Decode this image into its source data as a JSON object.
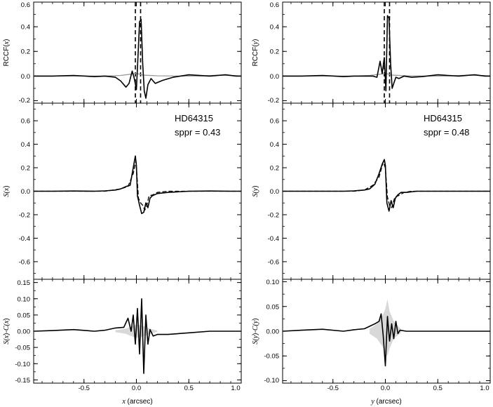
{
  "chart_data": [
    {
      "id": "left",
      "type": "line",
      "title": "",
      "xlabel_var": "x",
      "xlabel_unit": " (arcsec)",
      "xlim": [
        -0.98,
        1.0
      ],
      "xticks": [
        -0.5,
        0.0,
        0.5,
        1.0
      ],
      "xtick_labels": [
        "-0.5",
        "0.0",
        "0.5",
        "1.0"
      ],
      "panels": [
        {
          "id": "rccf",
          "ylabel": [
            {
              "t": "RCCF(",
              "i": false
            },
            {
              "t": "x",
              "i": true
            },
            {
              "t": ")",
              "i": false
            }
          ],
          "ylim": [
            -0.22,
            0.6
          ],
          "yticks": [
            -0.2,
            0.0,
            0.2,
            0.4,
            0.6
          ],
          "ytick_labels": [
            "-0.2",
            "0.0",
            "0.2",
            "0.4",
            "0.6"
          ],
          "vlines_dashed": [
            -0.01,
            0.04
          ],
          "series": [
            {
              "name": "",
              "style": "gray",
              "x": [
                -0.98,
                -0.6,
                -0.3,
                -0.15,
                -0.05,
                0.0,
                0.03,
                0.06,
                0.1,
                0.2,
                0.4,
                0.6,
                0.8,
                0.95,
                1.0
              ],
              "y": [
                0.0,
                0.0,
                0.0,
                0.005,
                0.015,
                0.022,
                0.015,
                0.008,
                0.006,
                0.002,
                0.0,
                0.0,
                0.008,
                0.003,
                0.0
              ]
            },
            {
              "name": "",
              "style": "black",
              "x": [
                -0.98,
                -0.8,
                -0.6,
                -0.4,
                -0.3,
                -0.2,
                -0.15,
                -0.1,
                -0.07,
                -0.04,
                -0.02,
                0.0,
                0.015,
                0.03,
                0.045,
                0.06,
                0.075,
                0.09,
                0.11,
                0.14,
                0.18,
                0.25,
                0.35,
                0.5,
                0.7,
                0.85,
                0.95,
                1.0
              ],
              "y": [
                0.0,
                0.0,
                0.005,
                -0.005,
                0.0,
                -0.01,
                -0.04,
                -0.09,
                -0.06,
                0.04,
                -0.02,
                -0.11,
                0.15,
                0.44,
                0.46,
                0.1,
                -0.12,
                -0.18,
                -0.07,
                -0.02,
                -0.06,
                -0.035,
                -0.01,
                0.01,
                0.0,
                0.01,
                0.0,
                0.0
              ]
            }
          ]
        },
        {
          "id": "signal",
          "ylabel": [
            {
              "t": "S(",
              "i": true
            },
            {
              "t": "x",
              "i": true
            },
            {
              "t": ")",
              "i": false
            }
          ],
          "ylim": [
            -0.75,
            0.75
          ],
          "yticks": [
            -0.6,
            -0.4,
            -0.2,
            0.0,
            0.2,
            0.4,
            0.6
          ],
          "ytick_labels": [
            "-0.6",
            "-0.4",
            "-0.2",
            "0.0",
            "0.2",
            "0.4",
            "0.6"
          ],
          "annotation": [
            "HD64315",
            "sppr = 0.43"
          ],
          "series": [
            {
              "name": "",
              "style": "dashed",
              "x": [
                -0.98,
                -0.6,
                -0.3,
                -0.15,
                -0.08,
                -0.03,
                -0.005,
                0.0,
                0.02,
                0.04,
                0.06,
                0.08,
                0.1,
                0.12,
                0.16,
                0.2,
                0.3,
                0.5,
                0.8,
                1.0
              ],
              "y": [
                0.0,
                0.0,
                0.0,
                0.02,
                0.04,
                0.15,
                0.26,
                0.2,
                -0.06,
                -0.1,
                -0.12,
                -0.16,
                -0.12,
                -0.04,
                -0.03,
                -0.01,
                0.0,
                0.0,
                0.0,
                0.0
              ]
            },
            {
              "name": "",
              "style": "black",
              "x": [
                -0.98,
                -0.8,
                -0.6,
                -0.4,
                -0.3,
                -0.2,
                -0.15,
                -0.1,
                -0.06,
                -0.03,
                -0.01,
                0.0,
                0.01,
                0.03,
                0.05,
                0.07,
                0.09,
                0.11,
                0.13,
                0.15,
                0.2,
                0.3,
                0.5,
                0.7,
                0.9,
                1.0
              ],
              "y": [
                0.0,
                0.0,
                0.002,
                0.0,
                0.003,
                0.01,
                0.02,
                0.04,
                0.05,
                0.2,
                0.3,
                0.22,
                -0.04,
                -0.12,
                -0.19,
                -0.18,
                -0.1,
                -0.14,
                -0.06,
                -0.04,
                -0.02,
                -0.01,
                0.0,
                0.002,
                0.0,
                0.0
              ]
            }
          ]
        },
        {
          "id": "diff",
          "ylabel": [
            {
              "t": "S(",
              "i": true
            },
            {
              "t": "x",
              "i": true
            },
            {
              "t": ")-",
              "i": false
            },
            {
              "t": "C(",
              "i": true
            },
            {
              "t": "x",
              "i": true
            },
            {
              "t": ")",
              "i": false
            }
          ],
          "ylim": [
            -0.16,
            0.16
          ],
          "yticks": [
            -0.15,
            -0.1,
            -0.05,
            0.0,
            0.05,
            0.1,
            0.15
          ],
          "ytick_labels": [
            "-0.15",
            "-0.10",
            "-0.05",
            "0.00",
            "0.05",
            "0.10",
            "0.15"
          ],
          "band": {
            "x": [
              -0.2,
              -0.1,
              -0.05,
              0.0,
              0.05,
              0.1,
              0.15,
              0.2
            ],
            "lo": [
              -0.003,
              -0.008,
              -0.015,
              -0.02,
              -0.018,
              -0.012,
              -0.006,
              -0.002
            ],
            "hi": [
              0.003,
              0.008,
              0.015,
              0.02,
              0.018,
              0.012,
              0.006,
              0.002
            ]
          },
          "series": [
            {
              "name": "",
              "style": "black",
              "x": [
                -0.98,
                -0.8,
                -0.6,
                -0.4,
                -0.3,
                -0.2,
                -0.12,
                -0.08,
                -0.05,
                -0.03,
                -0.01,
                0.01,
                0.03,
                0.05,
                0.07,
                0.09,
                0.11,
                0.13,
                0.16,
                0.2,
                0.3,
                0.5,
                0.7,
                0.9,
                1.0
              ],
              "y": [
                0.0,
                0.002,
                0.005,
                0.0,
                0.003,
                0.01,
                0.012,
                0.04,
                0.0,
                0.05,
                -0.04,
                0.07,
                -0.07,
                0.1,
                -0.13,
                0.05,
                -0.04,
                0.005,
                -0.015,
                -0.01,
                -0.01,
                -0.005,
                0.0,
                0.0,
                0.0
              ]
            }
          ]
        }
      ]
    },
    {
      "id": "right",
      "type": "line",
      "title": "",
      "xlabel_var": "y",
      "xlabel_unit": " (arcsec)",
      "xlim": [
        -0.98,
        1.0
      ],
      "xticks": [
        -0.5,
        0.0,
        0.5,
        1.0
      ],
      "xtick_labels": [
        "-0.5",
        "0.0",
        "0.5",
        "1.0"
      ],
      "panels": [
        {
          "id": "rccf",
          "ylabel": [
            {
              "t": "RCCF(",
              "i": false
            },
            {
              "t": "y",
              "i": true
            },
            {
              "t": ")",
              "i": false
            }
          ],
          "ylim": [
            -0.22,
            0.6
          ],
          "yticks": [
            -0.2,
            0.0,
            0.2,
            0.4,
            0.6
          ],
          "ytick_labels": [
            "-0.2",
            "0.0",
            "0.2",
            "0.4",
            "0.6"
          ],
          "vlines_dashed": [
            -0.01,
            0.04
          ],
          "series": [
            {
              "name": "",
              "style": "gray",
              "x": [
                -0.98,
                -0.6,
                -0.3,
                -0.15,
                -0.05,
                0.0,
                0.03,
                0.06,
                0.1,
                0.2,
                0.4,
                0.6,
                0.8,
                0.95,
                1.0
              ],
              "y": [
                0.0,
                0.0,
                0.0,
                0.005,
                0.015,
                0.022,
                0.015,
                0.008,
                0.006,
                0.002,
                0.0,
                0.0,
                0.008,
                0.003,
                0.0
              ]
            },
            {
              "name": "",
              "style": "black",
              "x": [
                -0.98,
                -0.8,
                -0.6,
                -0.4,
                -0.3,
                -0.2,
                -0.12,
                -0.08,
                -0.05,
                -0.03,
                -0.01,
                0.005,
                0.02,
                0.035,
                0.05,
                0.065,
                0.08,
                0.1,
                0.13,
                0.18,
                0.25,
                0.35,
                0.5,
                0.7,
                0.85,
                0.95,
                1.0
              ],
              "y": [
                0.0,
                0.0,
                0.005,
                -0.005,
                0.0,
                0.0,
                0.0,
                -0.01,
                0.12,
                0.02,
                0.15,
                -0.12,
                0.49,
                0.47,
                0.1,
                -0.1,
                -0.06,
                -0.01,
                -0.02,
                0.0,
                -0.01,
                -0.005,
                0.01,
                0.0,
                0.01,
                0.0,
                0.0
              ]
            }
          ]
        },
        {
          "id": "signal",
          "ylabel": [
            {
              "t": "S(",
              "i": true
            },
            {
              "t": "y",
              "i": true
            },
            {
              "t": ")",
              "i": false
            }
          ],
          "ylim": [
            -0.75,
            0.75
          ],
          "yticks": [
            -0.6,
            -0.4,
            -0.2,
            0.0,
            0.2,
            0.4,
            0.6
          ],
          "ytick_labels": [
            "-0.6",
            "-0.4",
            "-0.2",
            "0.0",
            "0.2",
            "0.4",
            "0.6"
          ],
          "annotation": [
            "HD64315",
            "sppr = 0.48"
          ],
          "series": [
            {
              "name": "",
              "style": "dashed",
              "x": [
                -0.98,
                -0.6,
                -0.3,
                -0.2,
                -0.12,
                -0.06,
                -0.02,
                0.0,
                0.02,
                0.04,
                0.06,
                0.09,
                0.12,
                0.18,
                0.25,
                0.4,
                0.7,
                1.0
              ],
              "y": [
                0.0,
                0.0,
                0.0,
                0.01,
                0.05,
                0.12,
                0.25,
                0.2,
                -0.05,
                -0.12,
                -0.14,
                -0.05,
                -0.04,
                -0.01,
                0.0,
                0.0,
                0.0,
                0.0
              ]
            },
            {
              "name": "",
              "style": "black",
              "x": [
                -0.98,
                -0.8,
                -0.6,
                -0.4,
                -0.3,
                -0.2,
                -0.15,
                -0.1,
                -0.06,
                -0.03,
                -0.01,
                0.0,
                0.015,
                0.035,
                0.055,
                0.075,
                0.095,
                0.12,
                0.15,
                0.2,
                0.3,
                0.5,
                0.7,
                0.9,
                1.0
              ],
              "y": [
                0.0,
                0.0,
                0.0,
                0.0,
                0.003,
                0.01,
                0.02,
                0.06,
                0.15,
                0.23,
                0.27,
                0.22,
                -0.1,
                -0.17,
                -0.08,
                -0.14,
                -0.06,
                -0.03,
                -0.01,
                -0.01,
                0.0,
                0.0,
                0.0,
                0.0,
                0.0
              ]
            }
          ]
        },
        {
          "id": "diff",
          "ylabel": [
            {
              "t": "S(",
              "i": true
            },
            {
              "t": "y",
              "i": true
            },
            {
              "t": ")-",
              "i": false
            },
            {
              "t": "C(",
              "i": true
            },
            {
              "t": "y",
              "i": true
            },
            {
              "t": ")",
              "i": false
            }
          ],
          "ylim": [
            -0.105,
            0.105
          ],
          "yticks": [
            -0.1,
            -0.05,
            0.0,
            0.05,
            0.1
          ],
          "ytick_labels": [
            "-0.10",
            "-0.05",
            "0.00",
            "0.05",
            "0.10"
          ],
          "band": {
            "x": [
              -0.15,
              -0.08,
              -0.03,
              0.0,
              0.02,
              0.04,
              0.08,
              0.15
            ],
            "lo": [
              -0.005,
              -0.015,
              -0.03,
              -0.045,
              -0.05,
              -0.035,
              -0.015,
              -0.003
            ],
            "hi": [
              0.005,
              0.015,
              0.03,
              0.045,
              0.065,
              0.04,
              0.02,
              0.004
            ]
          },
          "series": [
            {
              "name": "",
              "style": "black",
              "x": [
                -0.98,
                -0.8,
                -0.6,
                -0.4,
                -0.3,
                -0.2,
                -0.1,
                -0.06,
                -0.04,
                -0.02,
                0.0,
                0.02,
                0.04,
                0.06,
                0.08,
                0.1,
                0.12,
                0.14,
                0.2,
                0.3,
                0.5,
                0.7,
                0.9,
                1.0
              ],
              "y": [
                0.0,
                0.002,
                0.004,
                0.0,
                0.003,
                0.005,
                0.015,
                0.02,
                0.035,
                -0.01,
                -0.07,
                0.03,
                -0.02,
                0.015,
                -0.015,
                0.02,
                -0.005,
                0.002,
                0.0,
                0.0,
                0.0,
                0.0,
                0.0,
                0.0
              ]
            }
          ]
        }
      ]
    }
  ]
}
